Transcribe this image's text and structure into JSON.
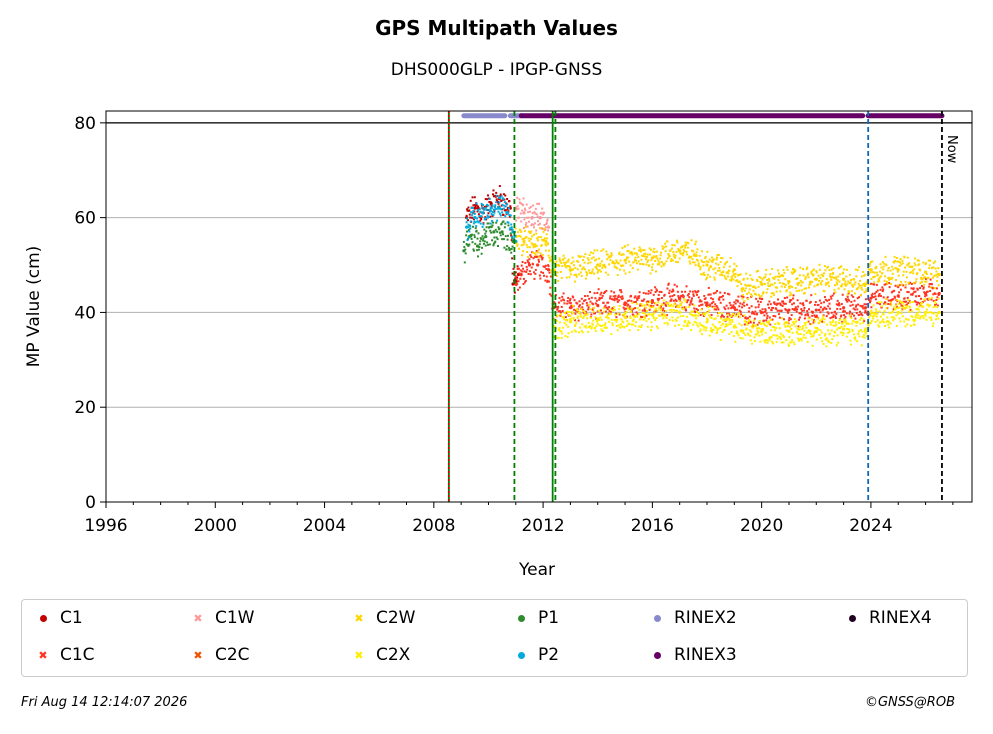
{
  "chart_data": {
    "type": "scatter",
    "title": "GPS Multipath Values",
    "subtitle": "DHS000GLP - IPGP-GNSS",
    "xlabel": "Year",
    "ylabel": "MP Value (cm)",
    "xlim": [
      1996,
      2027.7
    ],
    "ylim": [
      0,
      82.5
    ],
    "x_ticks": [
      1996,
      2000,
      2004,
      2008,
      2012,
      2016,
      2020,
      2024
    ],
    "y_ticks": [
      0,
      20,
      40,
      60,
      80
    ],
    "grid": "horizontal",
    "reference_line_y": 80,
    "series": [
      {
        "name": "C1",
        "marker": "dot",
        "color": "#c00000",
        "points": [
          [
            2009.2,
            60
          ],
          [
            2009.5,
            62
          ],
          [
            2009.8,
            61
          ],
          [
            2010.1,
            63
          ],
          [
            2010.4,
            64
          ],
          [
            2010.8,
            62
          ],
          [
            2010.9,
            46
          ],
          [
            2011.0,
            47
          ],
          [
            2011.1,
            48
          ]
        ]
      },
      {
        "name": "C1C",
        "marker": "x",
        "color": "#ff3322",
        "points": [
          [
            2011.0,
            46
          ],
          [
            2011.2,
            48
          ],
          [
            2011.5,
            50
          ],
          [
            2011.8,
            50
          ],
          [
            2012.2,
            49
          ],
          [
            2012.4,
            41
          ],
          [
            2013,
            41
          ],
          [
            2014,
            41.5
          ],
          [
            2015,
            42
          ],
          [
            2016,
            42.5
          ],
          [
            2017,
            43
          ],
          [
            2018,
            42
          ],
          [
            2019,
            41
          ],
          [
            2020,
            40
          ],
          [
            2021,
            40.5
          ],
          [
            2022,
            40.5
          ],
          [
            2023,
            41
          ],
          [
            2023.8,
            41
          ],
          [
            2024,
            43
          ],
          [
            2025,
            43.5
          ],
          [
            2026,
            44
          ],
          [
            2026.5,
            44
          ]
        ]
      },
      {
        "name": "C1W",
        "marker": "x",
        "color": "#ff9999",
        "points": [
          [
            2011.0,
            62
          ],
          [
            2011.3,
            61
          ],
          [
            2011.6,
            60
          ],
          [
            2011.9,
            60
          ],
          [
            2012.2,
            58
          ]
        ]
      },
      {
        "name": "C2C",
        "marker": "x",
        "color": "#ee5500",
        "points": []
      },
      {
        "name": "C2W",
        "marker": "x",
        "color": "#ffd700",
        "points": [
          [
            2011.0,
            56
          ],
          [
            2011.3,
            55
          ],
          [
            2011.7,
            54
          ],
          [
            2012.1,
            55
          ],
          [
            2012.4,
            49
          ],
          [
            2013,
            49
          ],
          [
            2014,
            50
          ],
          [
            2015,
            51
          ],
          [
            2016,
            51.5
          ],
          [
            2017,
            53
          ],
          [
            2017.6,
            52
          ],
          [
            2018,
            50
          ],
          [
            2019,
            49
          ],
          [
            2019.3,
            45
          ],
          [
            2020,
            46
          ],
          [
            2021,
            46.5
          ],
          [
            2022,
            47
          ],
          [
            2023,
            47
          ],
          [
            2023.8,
            46
          ],
          [
            2024,
            49
          ],
          [
            2025,
            49
          ],
          [
            2026,
            48.5
          ],
          [
            2026.5,
            48
          ]
        ]
      },
      {
        "name": "C2X",
        "marker": "x",
        "color": "#ffee00",
        "points": [
          [
            2012.4,
            37
          ],
          [
            2013,
            38
          ],
          [
            2014,
            38.5
          ],
          [
            2015,
            39
          ],
          [
            2016,
            39.5
          ],
          [
            2017,
            40
          ],
          [
            2018,
            38
          ],
          [
            2019,
            37
          ],
          [
            2020,
            36
          ],
          [
            2021,
            36
          ],
          [
            2022,
            36
          ],
          [
            2023,
            36.5
          ],
          [
            2023.8,
            36
          ],
          [
            2024,
            40
          ],
          [
            2025,
            40
          ],
          [
            2026,
            40
          ],
          [
            2026.5,
            40
          ]
        ]
      },
      {
        "name": "P1",
        "marker": "dot",
        "color": "#2e8b2e",
        "points": [
          [
            2009.1,
            53
          ],
          [
            2009.3,
            56
          ],
          [
            2009.6,
            54
          ],
          [
            2009.9,
            56
          ],
          [
            2010.2,
            57
          ],
          [
            2010.5,
            57
          ],
          [
            2010.9,
            55
          ]
        ]
      },
      {
        "name": "P2",
        "marker": "dot",
        "color": "#00aadd",
        "points": [
          [
            2009.2,
            58
          ],
          [
            2009.5,
            60
          ],
          [
            2009.8,
            61
          ],
          [
            2010.1,
            62
          ],
          [
            2010.4,
            62
          ],
          [
            2010.7,
            61
          ],
          [
            2010.9,
            57
          ],
          [
            2011.0,
            55
          ]
        ]
      }
    ],
    "rinex_bars": [
      {
        "name": "RINEX2",
        "color": "#8888cc",
        "y": 81.5,
        "from": 2009.1,
        "to": 2010.6
      },
      {
        "name": "RINEX2",
        "color": "#8888cc",
        "y": 81.5,
        "from": 2010.8,
        "to": 2011.2
      },
      {
        "name": "RINEX3",
        "color": "#660066",
        "y": 81.5,
        "from": 2011.2,
        "to": 2023.7
      },
      {
        "name": "RINEX3",
        "color": "#660066",
        "y": 81.5,
        "from": 2023.9,
        "to": 2026.6
      }
    ],
    "vertical_lines": [
      {
        "x": 2008.55,
        "color": "#008000",
        "style": "solid"
      },
      {
        "x": 2008.55,
        "color": "#dd0000",
        "style": "dotted"
      },
      {
        "x": 2010.95,
        "color": "#008000",
        "style": "dashed"
      },
      {
        "x": 2012.35,
        "color": "#008000",
        "style": "solid"
      },
      {
        "x": 2012.45,
        "color": "#008000",
        "style": "dashed"
      },
      {
        "x": 2023.9,
        "color": "#1166bb",
        "style": "dashed"
      },
      {
        "x": 2026.6,
        "color": "#000000",
        "style": "dashed",
        "label": "Now"
      }
    ],
    "legend": [
      {
        "name": "C1",
        "color": "#c00000",
        "marker": "dot"
      },
      {
        "name": "C1C",
        "color": "#ff3322",
        "marker": "x"
      },
      {
        "name": "C1W",
        "color": "#ff9999",
        "marker": "x"
      },
      {
        "name": "C2C",
        "color": "#ee5500",
        "marker": "x"
      },
      {
        "name": "C2W",
        "color": "#ffd700",
        "marker": "x"
      },
      {
        "name": "C2X",
        "color": "#ffee00",
        "marker": "x"
      },
      {
        "name": "P1",
        "color": "#2e8b2e",
        "marker": "dot"
      },
      {
        "name": "P2",
        "color": "#00aadd",
        "marker": "dot"
      },
      {
        "name": "RINEX2",
        "color": "#8888cc",
        "marker": "dot"
      },
      {
        "name": "RINEX3",
        "color": "#660066",
        "marker": "dot"
      },
      {
        "name": "RINEX4",
        "color": "#220022",
        "marker": "dot"
      }
    ],
    "legend_placement": "bottom"
  },
  "footer": {
    "timestamp": "Fri Aug 14 12:14:07 2026",
    "copyright": "©GNSS@ROB"
  }
}
